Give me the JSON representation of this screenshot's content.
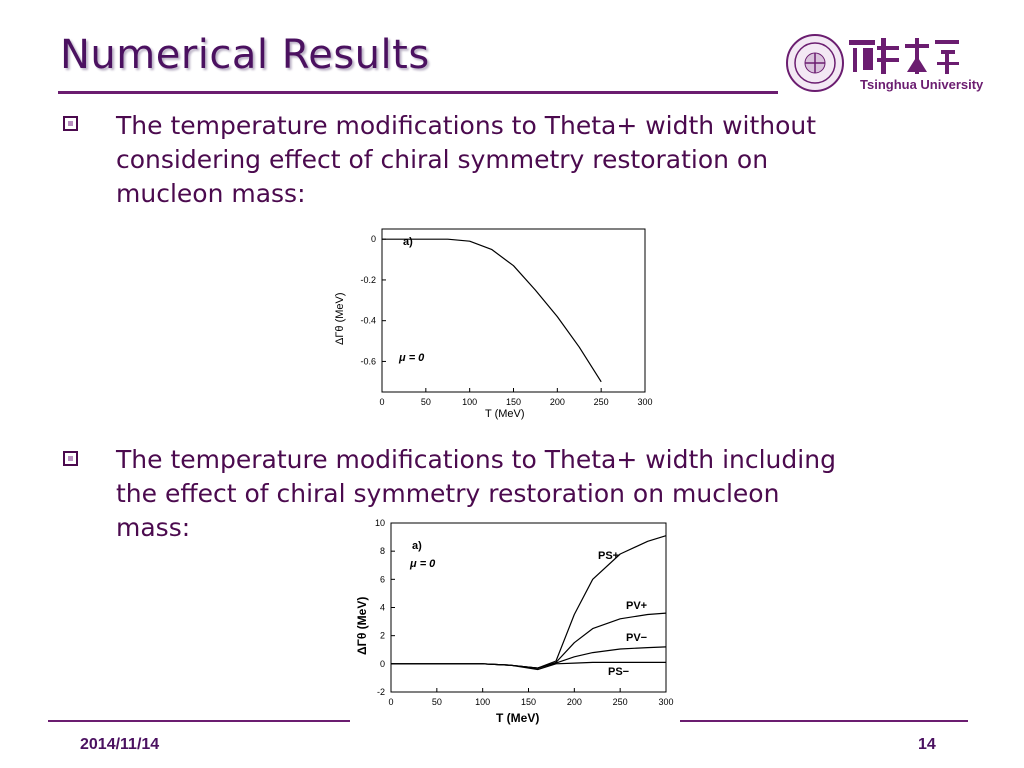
{
  "slide": {
    "title": "Numerical Results",
    "logo_text": "Tsinghua University",
    "bullets": [
      {
        "text_lines": [
          "The temperature modifications to Theta+ width without",
          "considering effect of chiral symmetry restoration on",
          "mucleon mass:"
        ]
      },
      {
        "text_lines": [
          "The temperature modifications to Theta+ width including",
          "the effect of chiral symmetry restoration on mucleon",
          "mass:"
        ]
      }
    ],
    "footer_date": "2014/11/14",
    "page_number": "14"
  },
  "chart_data": [
    {
      "type": "line",
      "panel_label": "a)",
      "annotation": "μ = 0",
      "xlabel": "T (MeV)",
      "ylabel": "ΔΓθ (MeV)",
      "xlim": [
        0,
        300
      ],
      "ylim": [
        -0.75,
        0.05
      ],
      "xticks": [
        "0",
        "50",
        "100",
        "150",
        "200",
        "250",
        "300"
      ],
      "yticks": [
        "0",
        "-0.2",
        "-0.4",
        "-0.6"
      ],
      "series": [
        {
          "x": [
            0,
            50,
            75,
            100,
            125,
            150,
            175,
            200,
            225,
            250
          ],
          "values": [
            0,
            0,
            0,
            -0.01,
            -0.05,
            -0.13,
            -0.25,
            -0.38,
            -0.53,
            -0.7
          ]
        }
      ]
    },
    {
      "type": "line",
      "panel_label": "a)",
      "annotation": "μ = 0",
      "xlabel": "T (MeV)",
      "ylabel": "ΔΓθ (MeV)",
      "xlim": [
        0,
        300
      ],
      "ylim": [
        -2,
        10
      ],
      "xticks": [
        "0",
        "50",
        "100",
        "150",
        "200",
        "250",
        "300"
      ],
      "yticks": [
        "-2",
        "0",
        "2",
        "4",
        "6",
        "8",
        "10"
      ],
      "series": [
        {
          "name": "PS+",
          "x": [
            0,
            100,
            130,
            160,
            180,
            200,
            220,
            250,
            280,
            300
          ],
          "values": [
            0,
            0,
            -0.1,
            -0.3,
            0.2,
            3.5,
            6.0,
            7.8,
            8.7,
            9.1
          ]
        },
        {
          "name": "PV+",
          "x": [
            0,
            100,
            130,
            160,
            180,
            200,
            220,
            250,
            280,
            300
          ],
          "values": [
            0,
            0,
            -0.1,
            -0.3,
            0.1,
            1.5,
            2.5,
            3.2,
            3.5,
            3.6
          ]
        },
        {
          "name": "PV−",
          "x": [
            0,
            100,
            130,
            160,
            180,
            200,
            220,
            250,
            280,
            300
          ],
          "values": [
            0,
            0,
            -0.1,
            -0.3,
            0.05,
            0.5,
            0.8,
            1.05,
            1.15,
            1.2
          ]
        },
        {
          "name": "PS−",
          "x": [
            0,
            100,
            130,
            160,
            180,
            200,
            220,
            250,
            280,
            300
          ],
          "values": [
            0,
            0,
            -0.1,
            -0.4,
            0.0,
            0.05,
            0.1,
            0.1,
            0.1,
            0.1
          ]
        }
      ]
    }
  ]
}
